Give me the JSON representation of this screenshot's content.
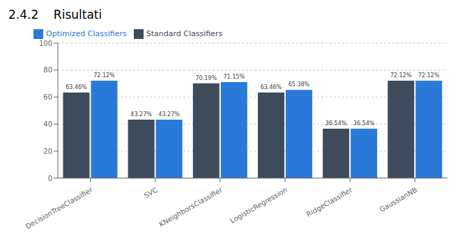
{
  "chart_data": {
    "type": "bar",
    "title": "2.4.2    Risultati",
    "categories": [
      "DecisionTreeClassifier",
      "SVC",
      "KNeighborsClassifier",
      "LogisticRegression",
      "RidgeClassifier",
      "GaussianNB"
    ],
    "series": [
      {
        "name": "Standard Classifiers",
        "color": "#3d4b5c",
        "values": [
          63.46,
          43.27,
          70.19,
          63.46,
          36.54,
          72.12
        ],
        "value_labels": [
          "63.46%",
          "43.27%",
          "70.19%",
          "63.46%",
          "36.54%",
          "72.12%"
        ]
      },
      {
        "name": "Optimized Classifiers",
        "color": "#2979d8",
        "values": [
          72.12,
          43.27,
          71.15,
          65.38,
          36.54,
          72.12
        ],
        "value_labels": [
          "72.12%",
          "43.27%",
          "71.15%",
          "65.38%",
          "36.54%",
          "72.12%"
        ]
      }
    ],
    "ylim": [
      0,
      100
    ],
    "yticks": [
      0,
      20,
      40,
      60,
      80,
      100
    ],
    "grid": true,
    "legend": "upper left",
    "data_labels": true
  }
}
